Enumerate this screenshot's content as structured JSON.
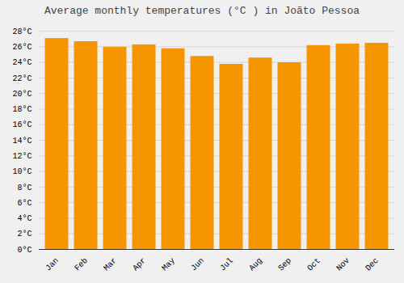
{
  "chart_data": {
    "type": "bar",
    "title": "Average monthly temperatures (°C ) in Joãto Pessoa",
    "categories": [
      "Jan",
      "Feb",
      "Mar",
      "Apr",
      "May",
      "Jun",
      "Jul",
      "Aug",
      "Sep",
      "Oct",
      "Nov",
      "Dec"
    ],
    "values": [
      27.0,
      26.6,
      25.9,
      26.2,
      25.7,
      24.7,
      23.7,
      24.5,
      23.9,
      26.1,
      26.3,
      26.4
    ],
    "color": "#F59500",
    "ylim": [
      0,
      28
    ],
    "yticks": [
      {
        "value": 0,
        "label": "0°C"
      },
      {
        "value": 2,
        "label": "2°C"
      },
      {
        "value": 4,
        "label": "4°C"
      },
      {
        "value": 6,
        "label": "6°C"
      },
      {
        "value": 8,
        "label": "8°C"
      },
      {
        "value": 10,
        "label": "10°C"
      },
      {
        "value": 12,
        "label": "12°C"
      },
      {
        "value": 14,
        "label": "14°C"
      },
      {
        "value": 16,
        "label": "16°C"
      },
      {
        "value": 18,
        "label": "18°C"
      },
      {
        "value": 20,
        "label": "20°C"
      },
      {
        "value": 22,
        "label": "22°C"
      },
      {
        "value": 24,
        "label": "24°C"
      },
      {
        "value": 26,
        "label": "26°C"
      },
      {
        "value": 28,
        "label": "28°C"
      }
    ],
    "grid": true
  }
}
